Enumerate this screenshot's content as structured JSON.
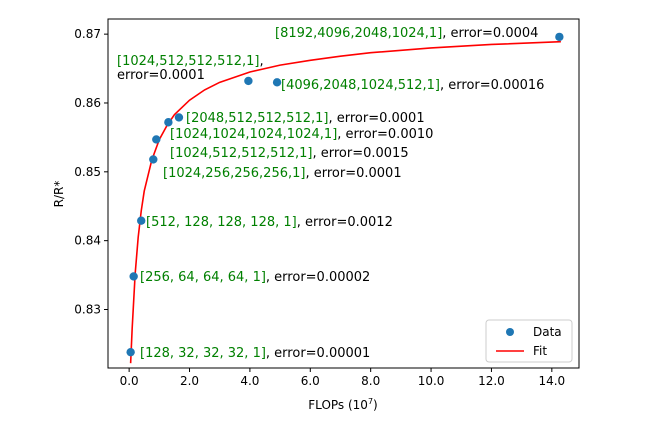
{
  "chart_data": {
    "type": "scatter",
    "xlabel": "FLOPs (10",
    "xlabel_exp": "7",
    "xlabel_close": ")",
    "ylabel": "R/R*",
    "xlim": [
      -0.7,
      14.9
    ],
    "ylim": [
      0.8215,
      0.8722
    ],
    "xticks": [
      0.0,
      2.0,
      4.0,
      6.0,
      8.0,
      10.0,
      12.0,
      14.0
    ],
    "xtick_labels": [
      "0.0",
      "2.0",
      "4.0",
      "6.0",
      "8.0",
      "10.0",
      "12.0",
      "14.0"
    ],
    "yticks": [
      0.83,
      0.84,
      0.85,
      0.86,
      0.87
    ],
    "ytick_labels": [
      "0.83",
      "0.84",
      "0.85",
      "0.86",
      "0.87"
    ],
    "grid": false,
    "legend": {
      "placement": "lower-right",
      "entries": [
        "Data",
        "Fit"
      ]
    },
    "colors": {
      "data": "#1f77b4",
      "fit": "#ff0000",
      "config": "#008000",
      "text": "#000000"
    },
    "series": [
      {
        "name": "Data",
        "type": "scatter",
        "points": [
          {
            "x": 0.05,
            "y": 0.8238
          },
          {
            "x": 0.15,
            "y": 0.8348
          },
          {
            "x": 0.4,
            "y": 0.8429
          },
          {
            "x": 0.8,
            "y": 0.8518
          },
          {
            "x": 0.9,
            "y": 0.8547
          },
          {
            "x": 1.3,
            "y": 0.8572
          },
          {
            "x": 1.65,
            "y": 0.8579
          },
          {
            "x": 3.95,
            "y": 0.8632
          },
          {
            "x": 4.9,
            "y": 0.863
          },
          {
            "x": 14.25,
            "y": 0.8696
          }
        ]
      },
      {
        "name": "Fit",
        "type": "line",
        "points": [
          {
            "x": 0.05,
            "y": 0.8222
          },
          {
            "x": 0.1,
            "y": 0.8272
          },
          {
            "x": 0.2,
            "y": 0.8352
          },
          {
            "x": 0.3,
            "y": 0.8405
          },
          {
            "x": 0.4,
            "y": 0.8443
          },
          {
            "x": 0.5,
            "y": 0.8472
          },
          {
            "x": 0.75,
            "y": 0.8517
          },
          {
            "x": 1.0,
            "y": 0.8547
          },
          {
            "x": 1.25,
            "y": 0.8567
          },
          {
            "x": 1.5,
            "y": 0.8583
          },
          {
            "x": 2.0,
            "y": 0.8604
          },
          {
            "x": 2.5,
            "y": 0.8619
          },
          {
            "x": 3.0,
            "y": 0.863
          },
          {
            "x": 4.0,
            "y": 0.8645
          },
          {
            "x": 5.0,
            "y": 0.8655
          },
          {
            "x": 6.0,
            "y": 0.8662
          },
          {
            "x": 7.0,
            "y": 0.8668
          },
          {
            "x": 8.0,
            "y": 0.8673
          },
          {
            "x": 10.0,
            "y": 0.868
          },
          {
            "x": 12.0,
            "y": 0.8685
          },
          {
            "x": 14.3,
            "y": 0.8689
          }
        ]
      }
    ],
    "annotations": [
      {
        "config": "[128, 32, 32, 32, 1]",
        "error": ", error=0.00001"
      },
      {
        "config": "[256, 64, 64, 64, 1]",
        "error": ", error=0.00002"
      },
      {
        "config": "[512, 128, 128, 128, 1]",
        "error": ", error=0.0012"
      },
      {
        "config": "[1024,256,256,256,1]",
        "error": ", error=0.0001"
      },
      {
        "config": "[1024,512,512,512,1]",
        "error": ", error=0.0015"
      },
      {
        "config": "[1024,1024,1024,1024,1]",
        "error": ", error=0.0010"
      },
      {
        "config": "[2048,512,512,512,1]",
        "error": ", error=0.0001"
      },
      {
        "config": "[1024,512,512,512,1]",
        "error": ",",
        "error_line2": "error=0.0001"
      },
      {
        "config": "[4096,2048,1024,512,1]",
        "error": ", error=0.00016"
      },
      {
        "config": "[8192,4096,2048,1024,1]",
        "error": ", error=0.0004"
      }
    ]
  }
}
